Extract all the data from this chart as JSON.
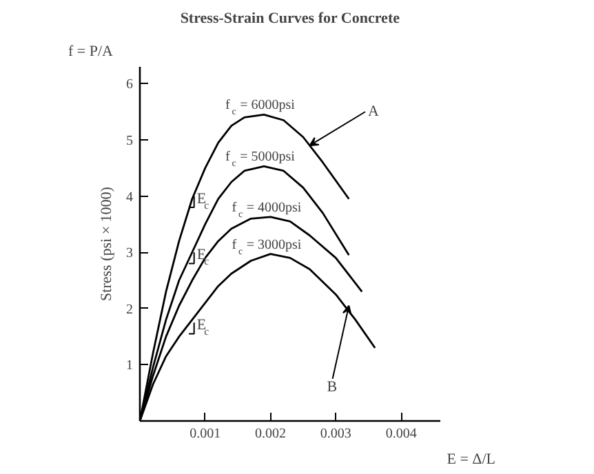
{
  "chart_data": {
    "type": "line",
    "title": "Stress-Strain Curves for Concrete",
    "xlabel": "E = Δ/L",
    "ylabel": "Stress (psi × 1000)",
    "xlim": [
      0,
      0.0046
    ],
    "ylim": [
      0,
      6.3
    ],
    "xticks": [
      0.001,
      0.002,
      0.003,
      0.004
    ],
    "yticks": [
      1,
      2,
      3,
      4,
      5,
      6
    ],
    "grid": false,
    "marker": "none",
    "line_style": "solid",
    "series": [
      {
        "name": "f$_{c}$ = 6000psi",
        "color": "#000000",
        "x": [
          0,
          0.0002,
          0.0004,
          0.0006,
          0.0008,
          0.001,
          0.0012,
          0.0014,
          0.0016,
          0.0019,
          0.0022,
          0.0025,
          0.0028,
          0.0032
        ],
        "values": [
          0,
          1.2,
          2.3,
          3.2,
          3.95,
          4.5,
          4.95,
          5.25,
          5.4,
          5.45,
          5.35,
          5.05,
          4.6,
          3.95
        ]
      },
      {
        "name": "f$_{c}$ = 5000psi",
        "color": "#000000",
        "x": [
          0,
          0.0002,
          0.0004,
          0.0006,
          0.0008,
          0.001,
          0.0012,
          0.0014,
          0.0016,
          0.0019,
          0.0022,
          0.0025,
          0.0028,
          0.0032
        ],
        "values": [
          0,
          0.95,
          1.8,
          2.5,
          3.0,
          3.5,
          3.95,
          4.25,
          4.45,
          4.53,
          4.45,
          4.15,
          3.7,
          2.95
        ]
      },
      {
        "name": "f$_{c}$ = 4000psi",
        "color": "#000000",
        "x": [
          0,
          0.0002,
          0.0004,
          0.0006,
          0.0008,
          0.001,
          0.0012,
          0.0014,
          0.0017,
          0.002,
          0.0023,
          0.0026,
          0.003,
          0.0034
        ],
        "values": [
          0,
          0.8,
          1.5,
          2.05,
          2.5,
          2.9,
          3.2,
          3.42,
          3.6,
          3.63,
          3.55,
          3.3,
          2.9,
          2.3
        ]
      },
      {
        "name": "f$_{c}$ = 3000psi",
        "color": "#000000",
        "x": [
          0,
          0.0002,
          0.0004,
          0.0006,
          0.0008,
          0.001,
          0.0012,
          0.0014,
          0.0017,
          0.002,
          0.0023,
          0.0026,
          0.003,
          0.0033,
          0.0036
        ],
        "values": [
          0,
          0.65,
          1.15,
          1.5,
          1.8,
          2.1,
          2.4,
          2.62,
          2.85,
          2.97,
          2.9,
          2.7,
          2.25,
          1.8,
          1.3
        ]
      }
    ],
    "annotations": [
      {
        "text": "E$_{c}$",
        "x": 0.00083,
        "y": 4.0
      },
      {
        "text": "E$_{c}$",
        "x": 0.00083,
        "y": 3.0
      },
      {
        "text": "E$_{c}$",
        "x": 0.00083,
        "y": 1.75
      },
      {
        "text": "A",
        "x": 0.0026,
        "y": 4.9
      },
      {
        "text": "B",
        "x": 0.0032,
        "y": 2.05
      },
      "f = P/A"
    ]
  }
}
